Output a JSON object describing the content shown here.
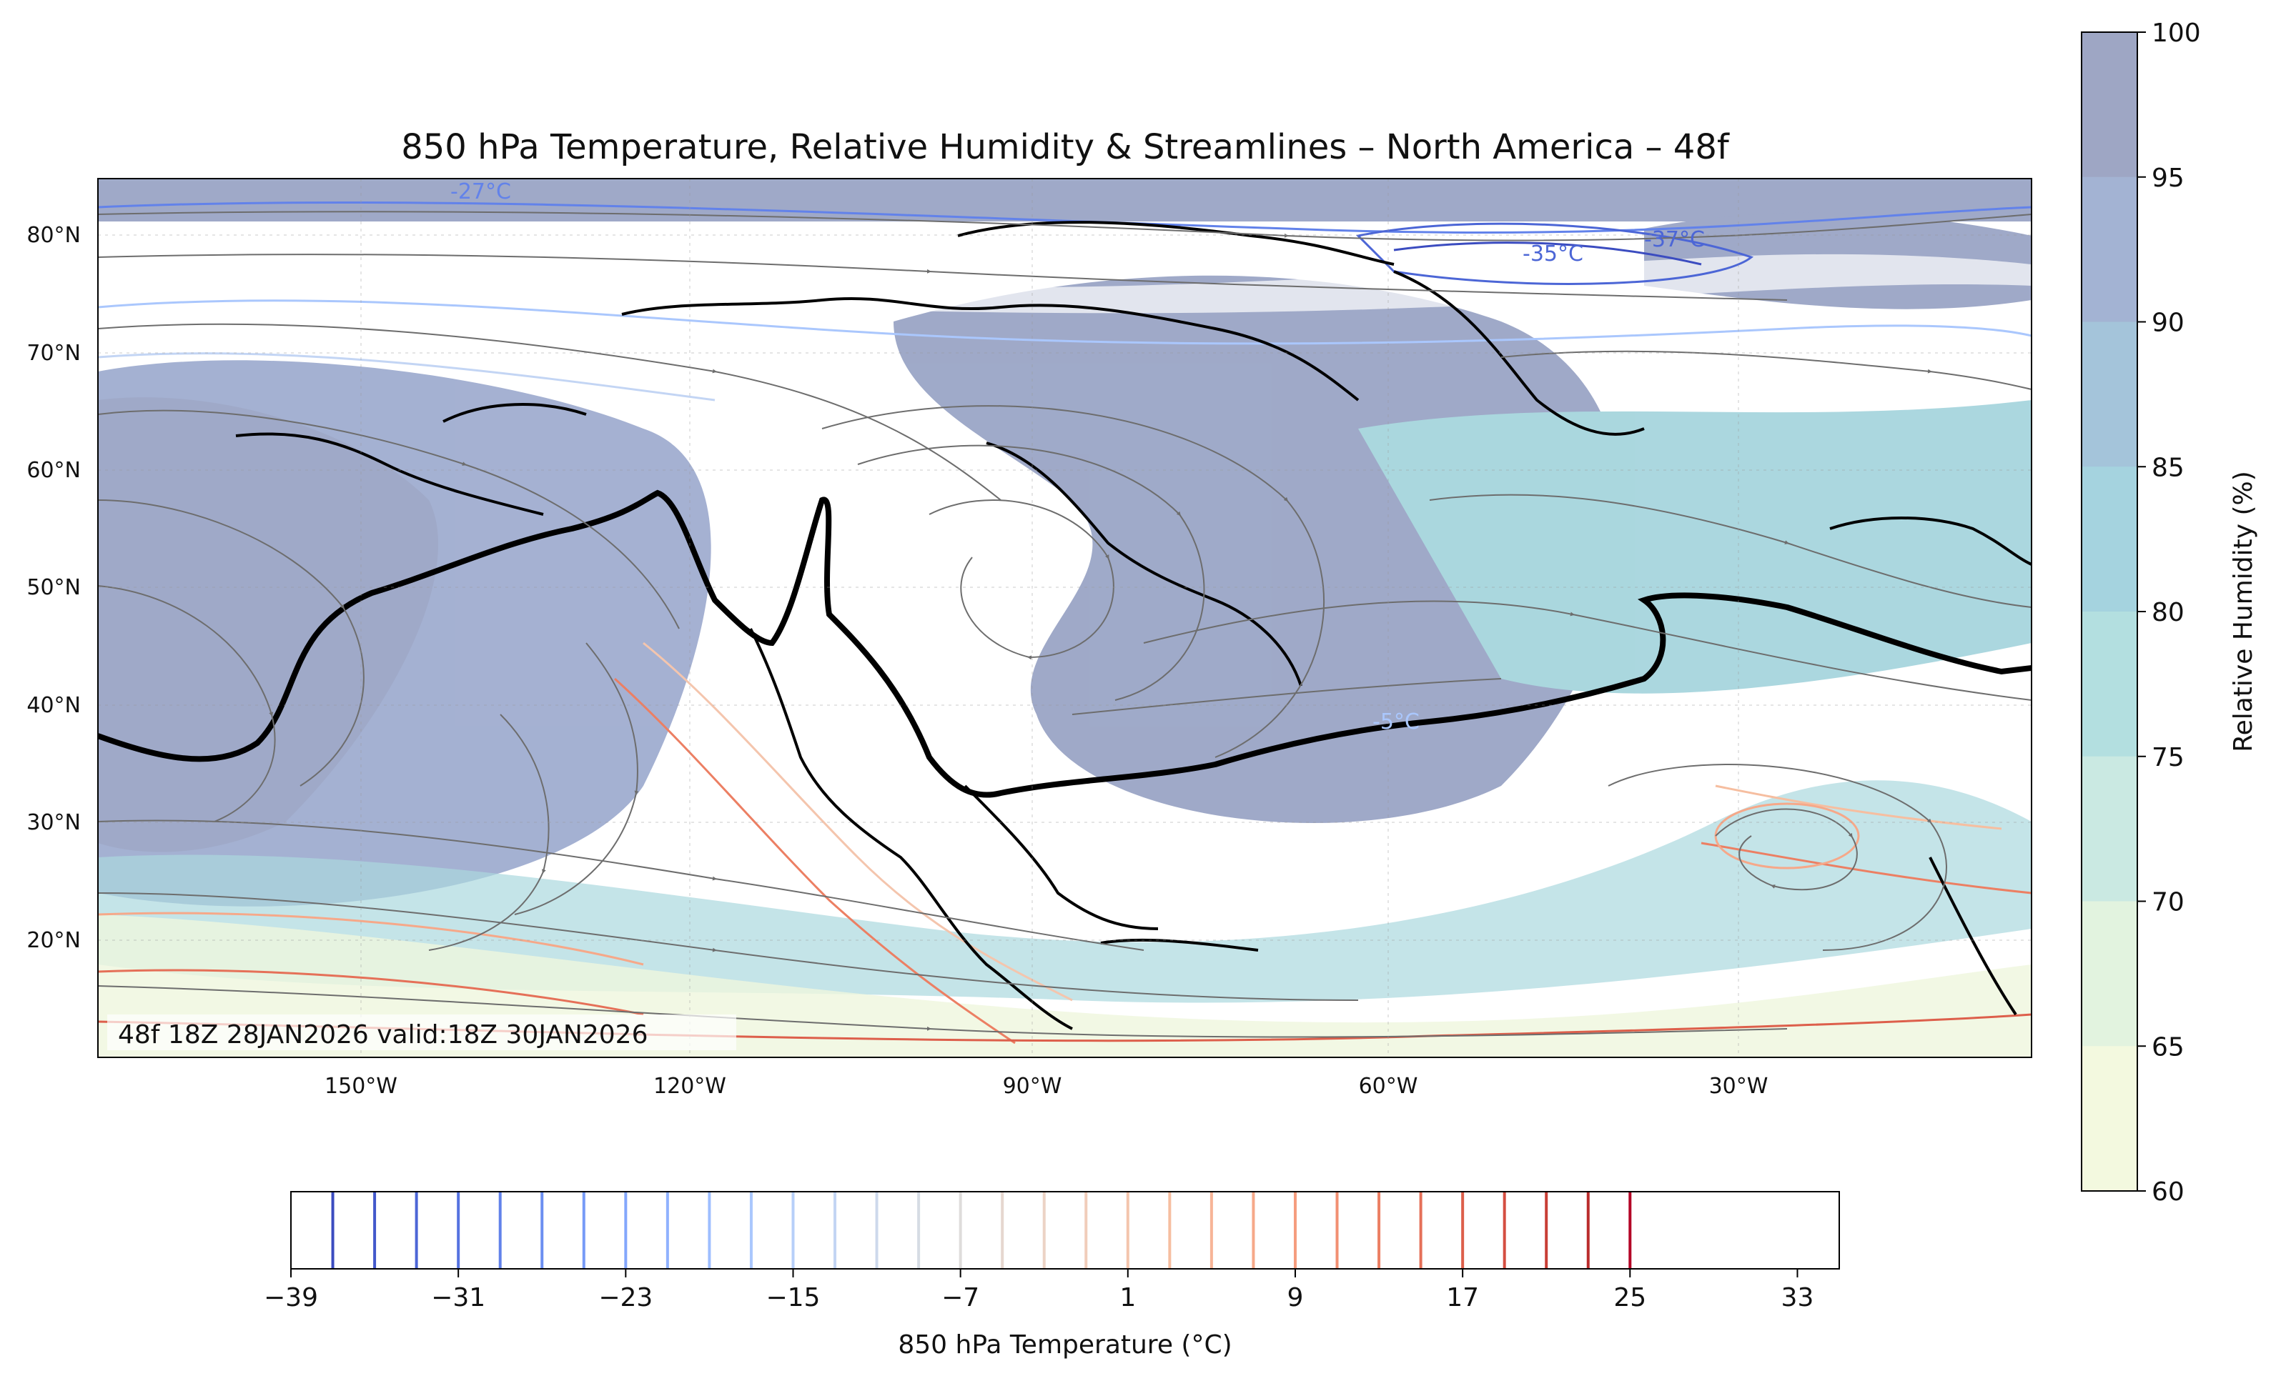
{
  "title": "850 hPa Temperature, Relative Humidity & Streamlines – North America – 48f",
  "valid_label": "48f 18Z 28JAN2026 valid:18Z 30JAN2026",
  "map": {
    "lon_ticks": [
      "150°W",
      "120°W",
      "90°W",
      "60°W",
      "30°W"
    ],
    "lat_ticks": [
      "80°N",
      "70°N",
      "60°N",
      "50°N",
      "40°N",
      "30°N",
      "20°N"
    ],
    "contour_labels": [
      "-27°C",
      "-35°C",
      "-37°C",
      "-5°C"
    ],
    "colors": {
      "rh_high": "#9aa5c6",
      "rh_mid": "#a6d5dd",
      "rh_low": "#eef6dc",
      "temp_cold": "#4961d6",
      "temp_warm": "#e96a55",
      "freezing_line": "#000000",
      "streamline": "#6d6d6d"
    }
  },
  "rh_colorbar": {
    "label": "Relative Humidity (%)",
    "ticks": [
      "100",
      "95",
      "90",
      "85",
      "80",
      "75",
      "70",
      "65",
      "60"
    ],
    "colors": [
      "#9ea6c4",
      "#a3b3d3",
      "#a4c4da",
      "#a5d3df",
      "#b3dfe0",
      "#cae9e2",
      "#e2f3df",
      "#f3f9df"
    ]
  },
  "temp_colorbar": {
    "label": "850 hPa Temperature (°C)",
    "ticks": [
      "−39",
      "−31",
      "−23",
      "−15",
      "−7",
      "1",
      "9",
      "17",
      "25",
      "33"
    ],
    "line_colors": [
      "#3b4cc0",
      "#4358cb",
      "#4c66d6",
      "#5673e0",
      "#6282ea",
      "#6c8ff1",
      "#779bf7",
      "#84a7fc",
      "#90b2fe",
      "#9ebeff",
      "#aac7fd",
      "#b7cff9",
      "#c3d5f4",
      "#cdd9ec",
      "#d6dce4",
      "#dedcdb",
      "#e6d7cf",
      "#ecd3c5",
      "#f1cdba",
      "#f4c5ad",
      "#f6bea0",
      "#f7b497",
      "#f6a889",
      "#f59d7e",
      "#f29072",
      "#ec7f63",
      "#e57058",
      "#dd5f4b",
      "#d44e41",
      "#c83e36",
      "#ba2c2c",
      "#b40426"
    ]
  }
}
